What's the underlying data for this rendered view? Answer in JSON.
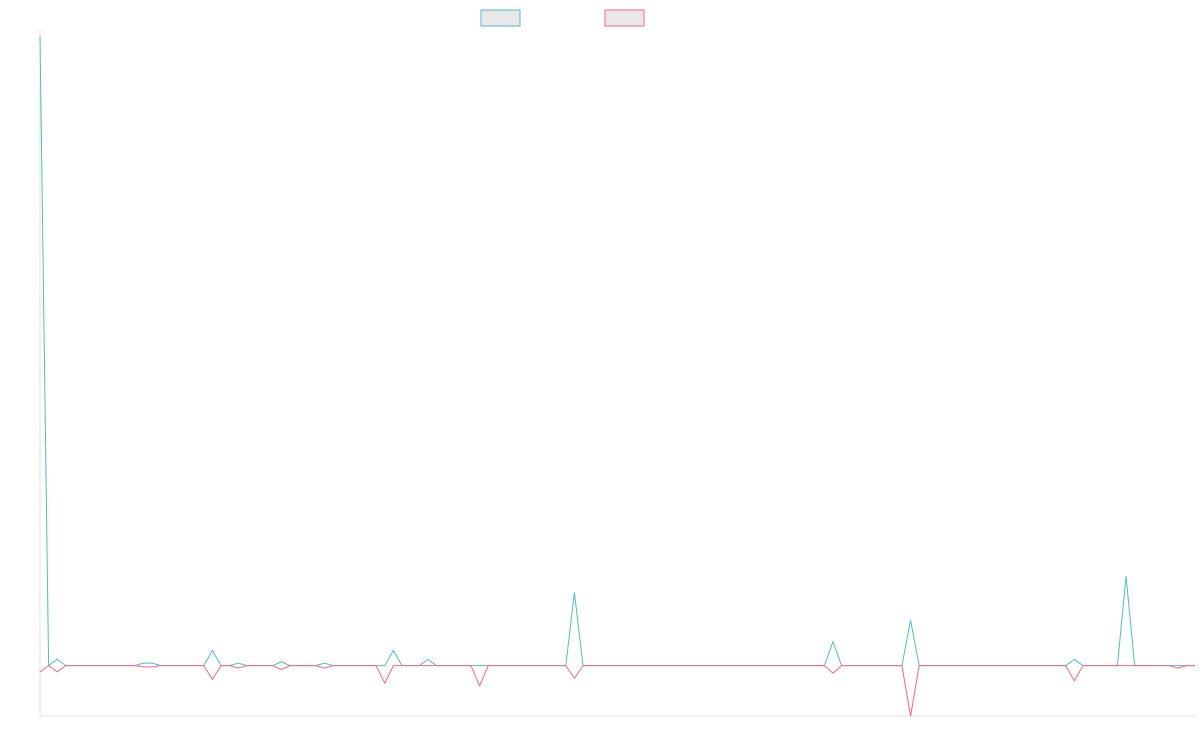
{
  "chart_data": {
    "type": "line",
    "title": "",
    "xlabel": "",
    "ylabel": "",
    "grid": false,
    "legend_position": "top-center",
    "x": [
      1,
      2,
      3,
      4,
      5,
      6,
      7,
      8,
      9,
      10,
      11,
      12,
      13,
      14,
      15,
      16,
      17,
      18,
      19,
      20,
      21,
      22,
      23,
      24,
      25,
      26,
      27,
      28,
      29,
      30,
      31,
      32,
      33,
      34,
      35,
      36,
      37,
      38,
      39,
      40,
      41,
      42,
      43,
      44,
      45,
      46,
      47,
      48,
      49,
      50,
      51,
      52,
      53,
      54,
      55,
      56,
      57,
      58,
      59,
      60,
      61,
      62,
      63,
      64,
      65,
      66,
      67,
      68,
      69,
      70,
      71,
      72,
      73,
      74,
      75,
      76,
      77,
      78,
      79,
      80,
      81,
      82,
      83,
      84,
      85,
      86,
      87,
      88,
      89,
      90,
      91,
      92,
      93,
      94,
      95,
      96,
      97,
      98,
      99,
      100,
      101,
      102,
      103,
      104,
      105,
      106,
      107,
      108,
      109,
      110,
      111,
      112,
      113,
      114,
      115,
      116,
      117,
      118,
      119,
      120,
      121,
      122,
      123,
      124,
      125,
      126,
      127,
      128,
      129,
      130,
      131,
      132,
      133,
      134,
      135
    ],
    "ylim": [
      -4,
      50
    ],
    "series": [
      {
        "name": "",
        "color": "#4bc0c0",
        "values": [
          50,
          0,
          0.5,
          0,
          0,
          0,
          0,
          0,
          0,
          0,
          0,
          0,
          0.2,
          0.2,
          0,
          0,
          0,
          0,
          0,
          0,
          1.2,
          0,
          0,
          0.2,
          0,
          0,
          0,
          0,
          0.3,
          0,
          0,
          0,
          0,
          0.2,
          0,
          0,
          0,
          0,
          0,
          0,
          0,
          1.2,
          0,
          0,
          0,
          0.5,
          0,
          0,
          0,
          0,
          0,
          0,
          0,
          0,
          0,
          0,
          0,
          0,
          0,
          0,
          0,
          0,
          5.8,
          0,
          0,
          0,
          0,
          0,
          0,
          0,
          0,
          0,
          0,
          0,
          0,
          0,
          0,
          0,
          0,
          0,
          0,
          0,
          0,
          0,
          0,
          0,
          0,
          0,
          0,
          0,
          0,
          0,
          1.9,
          0,
          0,
          0,
          0,
          0,
          0,
          0,
          0,
          3.6,
          0,
          0,
          0,
          0,
          0,
          0,
          0,
          0,
          0,
          0,
          0,
          0,
          0,
          0,
          0,
          0,
          0,
          0,
          0.5,
          0,
          0,
          0,
          0,
          0,
          7.1,
          0,
          0,
          0,
          0,
          0,
          0,
          0,
          0
        ]
      },
      {
        "name": "",
        "color": "#ff6384",
        "values": [
          -0.5,
          0,
          -0.5,
          0,
          0,
          0,
          0,
          0,
          0,
          0,
          0,
          0,
          -0.1,
          -0.1,
          0,
          0,
          0,
          0,
          0,
          0,
          -1.1,
          0,
          0,
          -0.2,
          0,
          0,
          0,
          0,
          -0.3,
          0,
          0,
          0,
          0,
          -0.2,
          0,
          0,
          0,
          0,
          0,
          0,
          -1.4,
          0,
          0,
          0,
          0,
          0,
          0,
          0,
          0,
          0,
          0,
          -1.6,
          0,
          0,
          0,
          0,
          0,
          0,
          0,
          0,
          0,
          0,
          -1,
          0,
          0,
          0,
          0,
          0,
          0,
          0,
          0,
          0,
          0,
          0,
          0,
          0,
          0,
          0,
          0,
          0,
          0,
          0,
          0,
          0,
          0,
          0,
          0,
          0,
          0,
          0,
          0,
          0,
          -0.6,
          0,
          0,
          0,
          0,
          0,
          0,
          0,
          0,
          -4,
          0,
          0,
          0,
          0,
          0,
          0,
          0,
          0,
          0,
          0,
          0,
          0,
          0,
          0,
          0,
          0,
          0,
          0,
          -1.2,
          0,
          0,
          0,
          0,
          0,
          0,
          0,
          0,
          0,
          0,
          0,
          -0.2,
          0,
          0
        ]
      }
    ]
  }
}
